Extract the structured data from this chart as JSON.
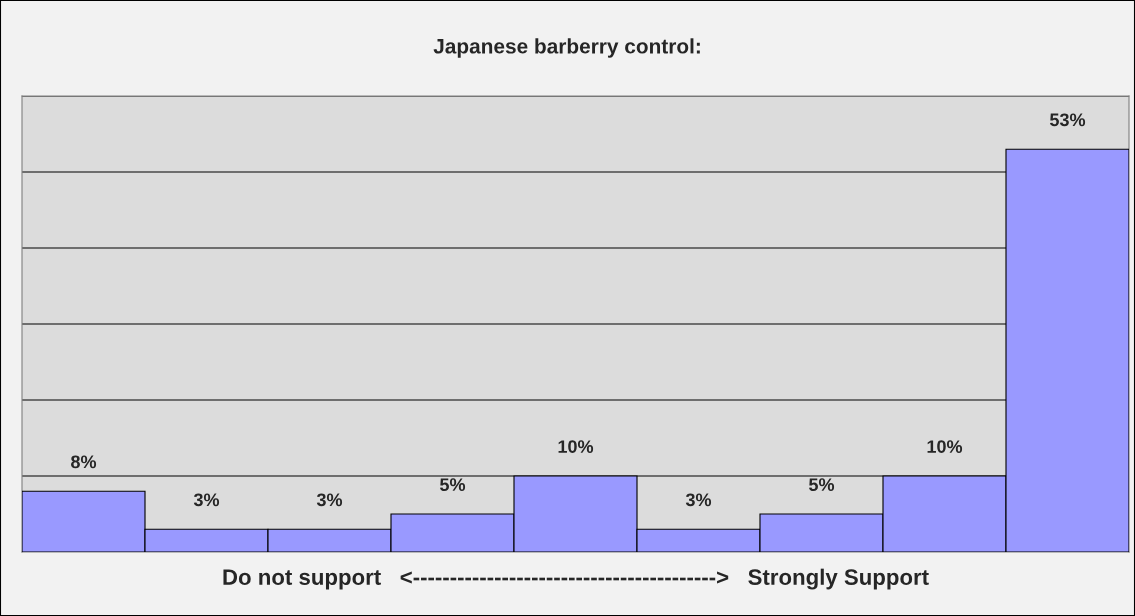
{
  "chart_data": {
    "type": "bar",
    "title": "Japanese barberry control:",
    "xlabel": "Do not support   <----------------------------------------->   Strongly Support",
    "categories": [
      null,
      null,
      null,
      null,
      null,
      null,
      null,
      null,
      null
    ],
    "values": [
      8,
      3,
      3,
      5,
      10,
      3,
      5,
      10,
      53
    ],
    "value_labels": [
      "8%",
      "3%",
      "3%",
      "5%",
      "10%",
      "3%",
      "5%",
      "10%",
      "53%"
    ],
    "color": "#9999ff",
    "ylim": [
      0,
      60
    ],
    "yticks": [
      {
        "value": 0,
        "label": null
      },
      {
        "value": 10,
        "label": null
      },
      {
        "value": 20,
        "label": null
      },
      {
        "value": 30,
        "label": null
      },
      {
        "value": 40,
        "label": null
      },
      {
        "value": 50,
        "label": null
      },
      {
        "value": 60,
        "label": null
      }
    ],
    "grid": "y",
    "tick_labels": false
  }
}
